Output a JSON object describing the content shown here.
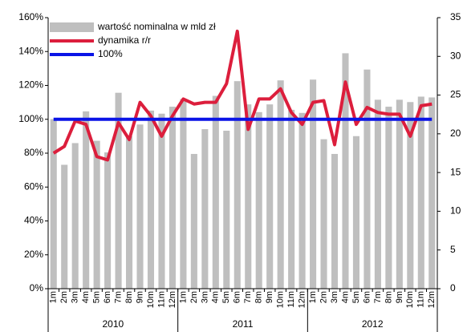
{
  "chart_data": {
    "type": "bar-line",
    "categories": [
      "1m",
      "2m",
      "3m",
      "4m",
      "5m",
      "6m",
      "7m",
      "8m",
      "9m",
      "10m",
      "11m",
      "12m",
      "1m",
      "2m",
      "3m",
      "4m",
      "5m",
      "6m",
      "7m",
      "8m",
      "9m",
      "10m",
      "11m",
      "12m",
      "1m",
      "2m",
      "3m",
      "4m",
      "5m",
      "6m",
      "7m",
      "8m",
      "9m",
      "10m",
      "11m",
      "12m"
    ],
    "groups": [
      "2010",
      "2011",
      "2012"
    ],
    "series": [
      {
        "name": "wartość nominalna w mld zł",
        "kind": "bar",
        "axis": "y2",
        "color": "#bfbfbf",
        "values": [
          21.9,
          16.0,
          18.8,
          22.9,
          19.1,
          17.6,
          25.3,
          19.7,
          21.2,
          23.0,
          22.6,
          23.5,
          24.5,
          17.4,
          20.6,
          24.9,
          20.4,
          26.8,
          23.8,
          22.8,
          23.8,
          26.9,
          23.1,
          22.7,
          27.0,
          19.3,
          17.4,
          30.4,
          19.7,
          28.3,
          24.4,
          23.5,
          24.4,
          24.1,
          24.8,
          24.7
        ]
      },
      {
        "name": "dynamika r/r",
        "kind": "line",
        "color": "#dc1e3c",
        "values": [
          80,
          84,
          99,
          97,
          78,
          76,
          98,
          88,
          110,
          102,
          90,
          102,
          112,
          109,
          110,
          110,
          121,
          152,
          94,
          112,
          112,
          118,
          104,
          97,
          110,
          111,
          85,
          122,
          97,
          107,
          104,
          103,
          103,
          90,
          108,
          109
        ]
      },
      {
        "name": "100%",
        "kind": "line",
        "color": "#0a14e6",
        "values": [
          100,
          100,
          100,
          100,
          100,
          100,
          100,
          100,
          100,
          100,
          100,
          100,
          100,
          100,
          100,
          100,
          100,
          100,
          100,
          100,
          100,
          100,
          100,
          100,
          100,
          100,
          100,
          100,
          100,
          100,
          100,
          100,
          100,
          100,
          100,
          100
        ]
      }
    ],
    "ylim": [
      0,
      160
    ],
    "yticks": [
      {
        "value": 0,
        "label": "0%"
      },
      {
        "value": 20,
        "label": "20%"
      },
      {
        "value": 40,
        "label": "40%"
      },
      {
        "value": 60,
        "label": "60%"
      },
      {
        "value": 80,
        "label": "80%"
      },
      {
        "value": 100,
        "label": "100%"
      },
      {
        "value": 120,
        "label": "120%"
      },
      {
        "value": 140,
        "label": "140%"
      },
      {
        "value": 160,
        "label": "160%"
      }
    ],
    "y2lim": [
      0,
      35
    ],
    "y2ticks": [
      0,
      5,
      10,
      15,
      20,
      25,
      30,
      35
    ],
    "legend": "top-left"
  }
}
